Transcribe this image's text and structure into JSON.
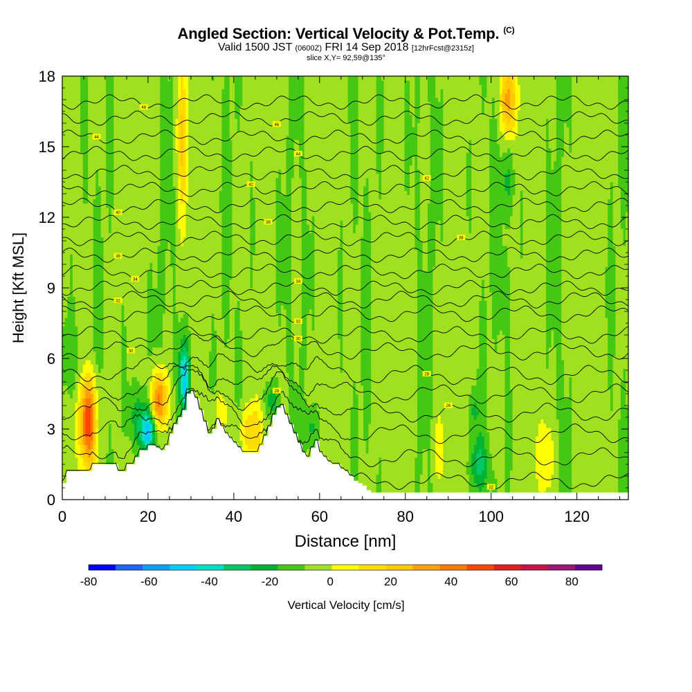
{
  "header": {
    "title": "Angled Section: Vertical Velocity & Pot.Temp.",
    "title_unit": "(C)",
    "valid_prefix": "Valid 1500 JST",
    "valid_zulu": "(0600Z)",
    "valid_date": "FRI 14 Sep 2018",
    "forecast_tag": "[12hrFcst@2315z]",
    "slice": "slice X,Y= 92,59@135°"
  },
  "chart_data": {
    "type": "heatmap",
    "xlabel": "Distance [nm]",
    "ylabel": "Height [Kft MSL]",
    "xlim": [
      0,
      132
    ],
    "ylim": [
      0,
      18
    ],
    "x_ticks": [
      0,
      20,
      40,
      60,
      80,
      100,
      120
    ],
    "y_ticks": [
      0,
      3,
      6,
      9,
      12,
      15,
      18
    ],
    "colorbar": {
      "label": "Vertical Velocity [cm/s]",
      "min": -80,
      "max": 90,
      "step": 10,
      "tick_values": [
        -80,
        -60,
        -40,
        -20,
        0,
        20,
        40,
        60,
        80
      ],
      "colors": [
        "#0000ff",
        "#1e64ff",
        "#0aa0ff",
        "#00ccff",
        "#00e0c8",
        "#00c864",
        "#00b432",
        "#44c814",
        "#a0e01e",
        "#ffff00",
        "#ffdc00",
        "#ffc800",
        "#ffa000",
        "#ff7800",
        "#ff4600",
        "#e61e1e",
        "#c81448",
        "#a01478",
        "#640096"
      ]
    },
    "background_velocity": 2,
    "terrain_profile": [
      [
        0,
        0.7
      ],
      [
        1,
        1.2
      ],
      [
        2,
        1.2
      ],
      [
        3,
        1.2
      ],
      [
        4,
        1.2
      ],
      [
        5,
        1.2
      ],
      [
        6,
        1.2
      ],
      [
        7,
        1.5
      ],
      [
        8,
        1.5
      ],
      [
        9,
        1.5
      ],
      [
        10,
        1.5
      ],
      [
        11,
        1.5
      ],
      [
        12,
        1.5
      ],
      [
        13,
        1.2
      ],
      [
        14,
        1.2
      ],
      [
        15,
        1.5
      ],
      [
        16,
        1.5
      ],
      [
        17,
        1.8
      ],
      [
        18,
        2.1
      ],
      [
        19,
        2.1
      ],
      [
        20,
        2.3
      ],
      [
        21,
        2.3
      ],
      [
        22,
        2.2
      ],
      [
        23,
        2.1
      ],
      [
        24,
        2.3
      ],
      [
        25,
        2.8
      ],
      [
        26,
        3.2
      ],
      [
        27,
        3.5
      ],
      [
        28,
        3.8
      ],
      [
        29,
        4.5
      ],
      [
        30,
        4.6
      ],
      [
        31,
        4.3
      ],
      [
        32,
        3.8
      ],
      [
        33,
        3.3
      ],
      [
        34,
        2.8
      ],
      [
        35,
        3.0
      ],
      [
        36,
        3.4
      ],
      [
        37,
        3.1
      ],
      [
        38,
        2.8
      ],
      [
        39,
        2.6
      ],
      [
        40,
        2.4
      ],
      [
        41,
        2.2
      ],
      [
        42,
        2.0
      ],
      [
        43,
        2.0
      ],
      [
        44,
        2.0
      ],
      [
        45,
        2.0
      ],
      [
        46,
        2.3
      ],
      [
        47,
        2.7
      ],
      [
        48,
        3.1
      ],
      [
        49,
        3.6
      ],
      [
        50,
        3.9
      ],
      [
        51,
        4.0
      ],
      [
        52,
        3.6
      ],
      [
        53,
        3.2
      ],
      [
        54,
        2.8
      ],
      [
        55,
        2.4
      ],
      [
        56,
        2.0
      ],
      [
        57,
        1.8
      ],
      [
        58,
        2.2
      ],
      [
        59,
        2.5
      ],
      [
        60,
        2.0
      ],
      [
        61,
        1.8
      ],
      [
        62,
        1.6
      ],
      [
        63,
        1.5
      ],
      [
        64,
        1.5
      ],
      [
        65,
        1.3
      ],
      [
        66,
        1.2
      ],
      [
        67,
        1.0
      ],
      [
        68,
        0.8
      ],
      [
        69,
        0.7
      ],
      [
        70,
        0.6
      ],
      [
        71,
        0.4
      ],
      [
        72,
        0.3
      ],
      [
        132,
        0.3
      ]
    ],
    "velocity_features": [
      {
        "x": 6,
        "y": 3.3,
        "sx": 1.4,
        "sy": 1.4,
        "amp": 68
      },
      {
        "x": 22.5,
        "y": 4.2,
        "sx": 1.3,
        "sy": 0.9,
        "amp": 58
      },
      {
        "x": 20,
        "y": 2.9,
        "sx": 1.4,
        "sy": 0.6,
        "amp": -42
      },
      {
        "x": 28.5,
        "y": 5.2,
        "sx": 0.9,
        "sy": 1.0,
        "amp": -48
      },
      {
        "x": 18,
        "y": 3.6,
        "sx": 2.0,
        "sy": 1.0,
        "amp": -18
      },
      {
        "x": 44,
        "y": 2.9,
        "sx": 2.2,
        "sy": 0.8,
        "amp": 24
      },
      {
        "x": 49,
        "y": 4.2,
        "sx": 1.0,
        "sy": 0.5,
        "amp": -22
      },
      {
        "x": 58,
        "y": 3.0,
        "sx": 1.2,
        "sy": 0.6,
        "amp": -16
      },
      {
        "x": 37,
        "y": 3.7,
        "sx": 1.5,
        "sy": 0.6,
        "amp": 14
      },
      {
        "x": 28,
        "y": 15.5,
        "sx": 0.9,
        "sy": 2.5,
        "amp": 26
      },
      {
        "x": 104,
        "y": 17.0,
        "sx": 1.3,
        "sy": 1.1,
        "amp": 44
      },
      {
        "x": 112,
        "y": 1.8,
        "sx": 1.6,
        "sy": 1.3,
        "amp": 18
      },
      {
        "x": 88,
        "y": 2.0,
        "sx": 1.1,
        "sy": 1.1,
        "amp": 14
      },
      {
        "x": 97,
        "y": 1.5,
        "sx": 1.4,
        "sy": 0.8,
        "amp": -24
      },
      {
        "x": 96,
        "y": 3.8,
        "sx": 1.0,
        "sy": 0.6,
        "amp": -14
      },
      {
        "x": 104,
        "y": 13.6,
        "sx": 1.0,
        "sy": 1.2,
        "amp": -16
      },
      {
        "x": 103,
        "y": 9.0,
        "sx": 0.8,
        "sy": 1.0,
        "amp": -12
      },
      {
        "x": 2,
        "y": 6.0,
        "sx": 2.6,
        "sy": 1.2,
        "amp": -10
      }
    ],
    "isentropes": [
      {
        "base": 0.8,
        "label": "22",
        "lx": 100,
        "wobble": 0.25
      },
      {
        "base": 1.8,
        "label": "",
        "lx": 0,
        "wobble": 0.3
      },
      {
        "base": 2.8,
        "label": "",
        "lx": 0,
        "wobble": 0.3
      },
      {
        "base": 3.7,
        "label": "26",
        "lx": 90,
        "wobble": 0.3
      },
      {
        "base": 4.5,
        "label": "28",
        "lx": 50,
        "wobble": 0.3
      },
      {
        "base": 5.3,
        "label": "28",
        "lx": 85,
        "wobble": 0.3
      },
      {
        "base": 6.3,
        "label": "30",
        "lx": 16,
        "wobble": 0.25
      },
      {
        "base": 7.0,
        "label": "30",
        "lx": 55,
        "wobble": 0.25
      },
      {
        "base": 7.9,
        "label": "32",
        "lx": 55,
        "wobble": 0.25
      },
      {
        "base": 8.5,
        "label": "32",
        "lx": 13,
        "wobble": 0.25
      },
      {
        "base": 9.0,
        "label": "34",
        "lx": 55,
        "wobble": 0.2
      },
      {
        "base": 9.7,
        "label": "34",
        "lx": 17,
        "wobble": 0.2
      },
      {
        "base": 10.4,
        "label": "36",
        "lx": 13,
        "wobble": 0.2
      },
      {
        "base": 11.1,
        "label": "38",
        "lx": 93,
        "wobble": 0.2
      },
      {
        "base": 11.8,
        "label": "38",
        "lx": 48,
        "wobble": 0.2
      },
      {
        "base": 12.5,
        "label": "40",
        "lx": 13,
        "wobble": 0.2
      },
      {
        "base": 13.2,
        "label": "42",
        "lx": 44,
        "wobble": 0.2
      },
      {
        "base": 13.9,
        "label": "42",
        "lx": 85,
        "wobble": 0.2
      },
      {
        "base": 14.7,
        "label": "44",
        "lx": 55,
        "wobble": 0.2
      },
      {
        "base": 15.4,
        "label": "44",
        "lx": 8,
        "wobble": 0.2
      },
      {
        "base": 16.2,
        "label": "46",
        "lx": 50,
        "wobble": 0.2
      },
      {
        "base": 16.9,
        "label": "48",
        "lx": 19,
        "wobble": 0.2
      }
    ]
  }
}
